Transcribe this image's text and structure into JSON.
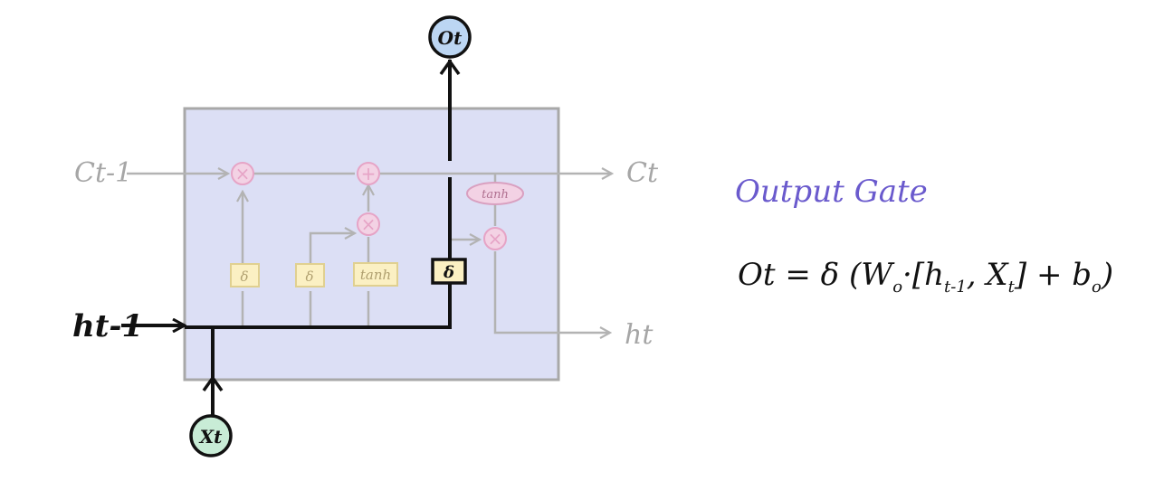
{
  "diagram": {
    "title": "Output Gate",
    "formula": {
      "lhs": "Ot",
      "equals": "=",
      "sigma": "δ",
      "open": "(",
      "weight": "W",
      "weight_sub": "o",
      "dot": "·",
      "bracket_open": "[",
      "h": "h",
      "h_sub": "t-1",
      "comma": ",",
      "x": "X",
      "x_sub": "t",
      "bracket_close": "]",
      "plus": "+",
      "bias": "b",
      "bias_sub": "o",
      "close": ")"
    },
    "labels": {
      "cell_in": "Ct-1",
      "cell_out": "Ct",
      "hidden_in": "ht-1",
      "hidden_out": "ht",
      "input_node": "Xt",
      "output_node": "Ot"
    },
    "gates": {
      "forget_sigma": "δ",
      "input_sigma": "δ",
      "candidate_tanh": "tanh",
      "output_sigma": "δ",
      "cell_tanh": "tanh"
    },
    "ops": {
      "multiply": "×",
      "add": "+"
    },
    "colors": {
      "cell_fill": "#dcdff5",
      "cell_border": "#a8a8a8",
      "faint_line": "#b3b3b3",
      "gate_fill": "#fbf0c3",
      "op_fill": "#f3d2e4",
      "output_node_fill": "#bcd6f3",
      "input_node_fill": "#c8ecd6",
      "title_color": "#6a5acd"
    }
  }
}
